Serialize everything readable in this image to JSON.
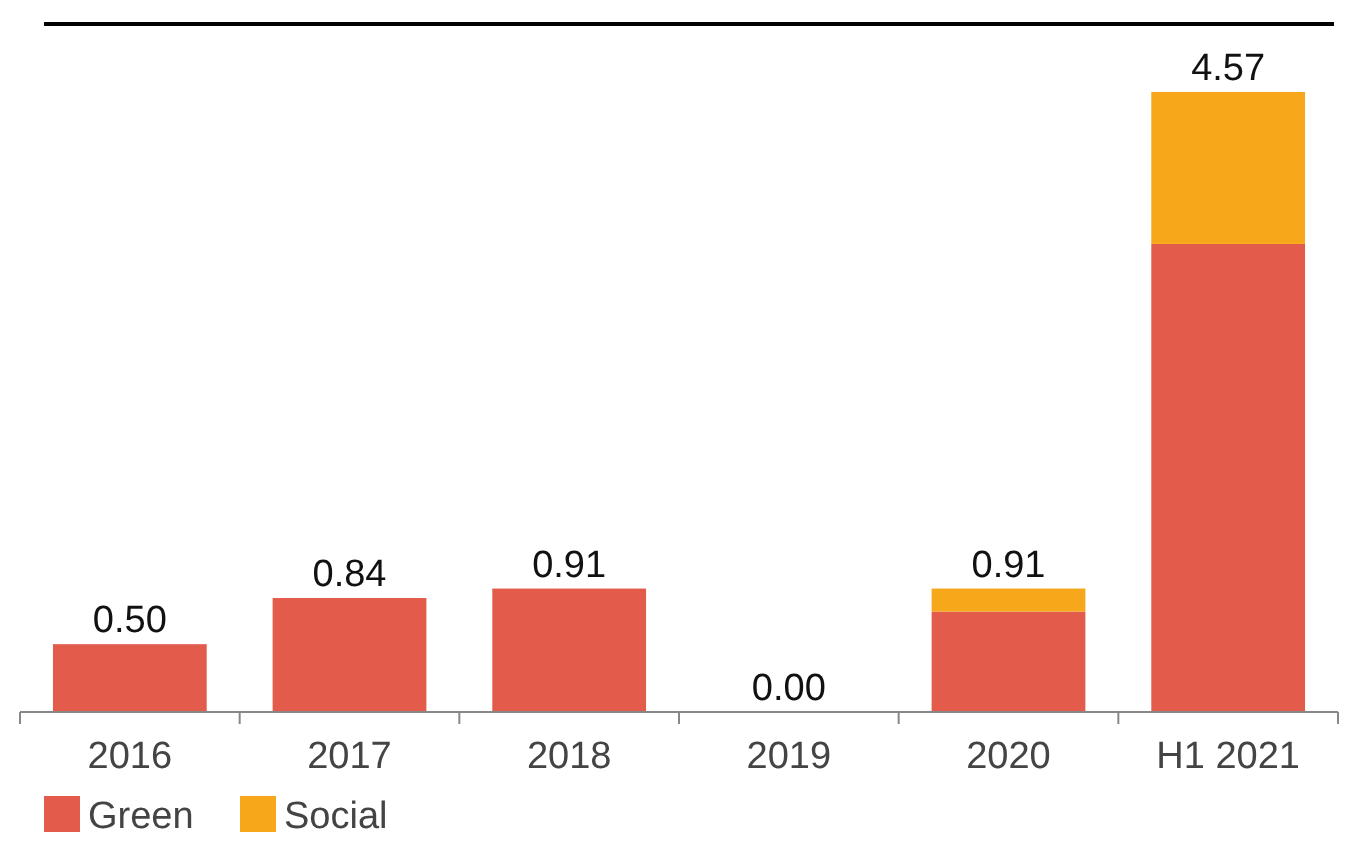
{
  "chart_data": {
    "type": "bar",
    "stacked": true,
    "categories": [
      "2016",
      "2017",
      "2018",
      "2019",
      "2020",
      "H1 2021"
    ],
    "series": [
      {
        "name": "Green",
        "color": "#e35c4b",
        "values": [
          0.5,
          0.84,
          0.91,
          0.0,
          0.74,
          3.45
        ],
        "value_labels": [
          "0.50",
          "0.84",
          "0.91",
          "0.00",
          null,
          null
        ]
      },
      {
        "name": "Social",
        "color": "#f6a81a",
        "values": [
          null,
          null,
          null,
          null,
          0.17,
          1.12
        ]
      }
    ],
    "totals": [
      null,
      null,
      null,
      null,
      "0.91",
      "4.57"
    ],
    "legend": "bottom left"
  }
}
